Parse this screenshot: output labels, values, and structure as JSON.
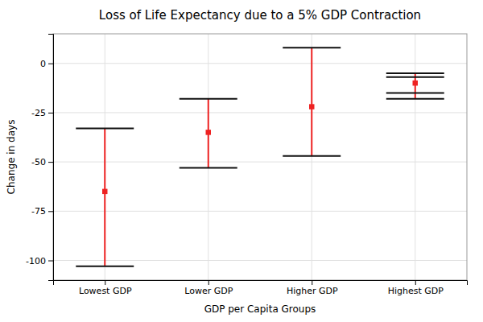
{
  "chart_data": {
    "type": "errorbar",
    "title": "Loss of Life Expectancy due to a 5% GDP Contraction",
    "xlabel": "GDP per Capita Groups",
    "ylabel": "Change in days",
    "categories": [
      "Lowest GDP",
      "Lower GDP",
      "Higher GDP",
      "Highest GDP"
    ],
    "values": [
      -65,
      -35,
      -22,
      -10
    ],
    "upper": [
      -33,
      -18,
      8,
      -5
    ],
    "lower": [
      -103,
      -53,
      -47,
      -18
    ],
    "inner_upper": [
      null,
      null,
      null,
      -7
    ],
    "inner_lower": [
      null,
      null,
      null,
      -15
    ],
    "color": "#EE2222",
    "marker": "square",
    "ylim": [
      -110,
      15
    ],
    "yticks": [
      -100,
      -75,
      -50,
      -25,
      0
    ],
    "grid": true
  }
}
